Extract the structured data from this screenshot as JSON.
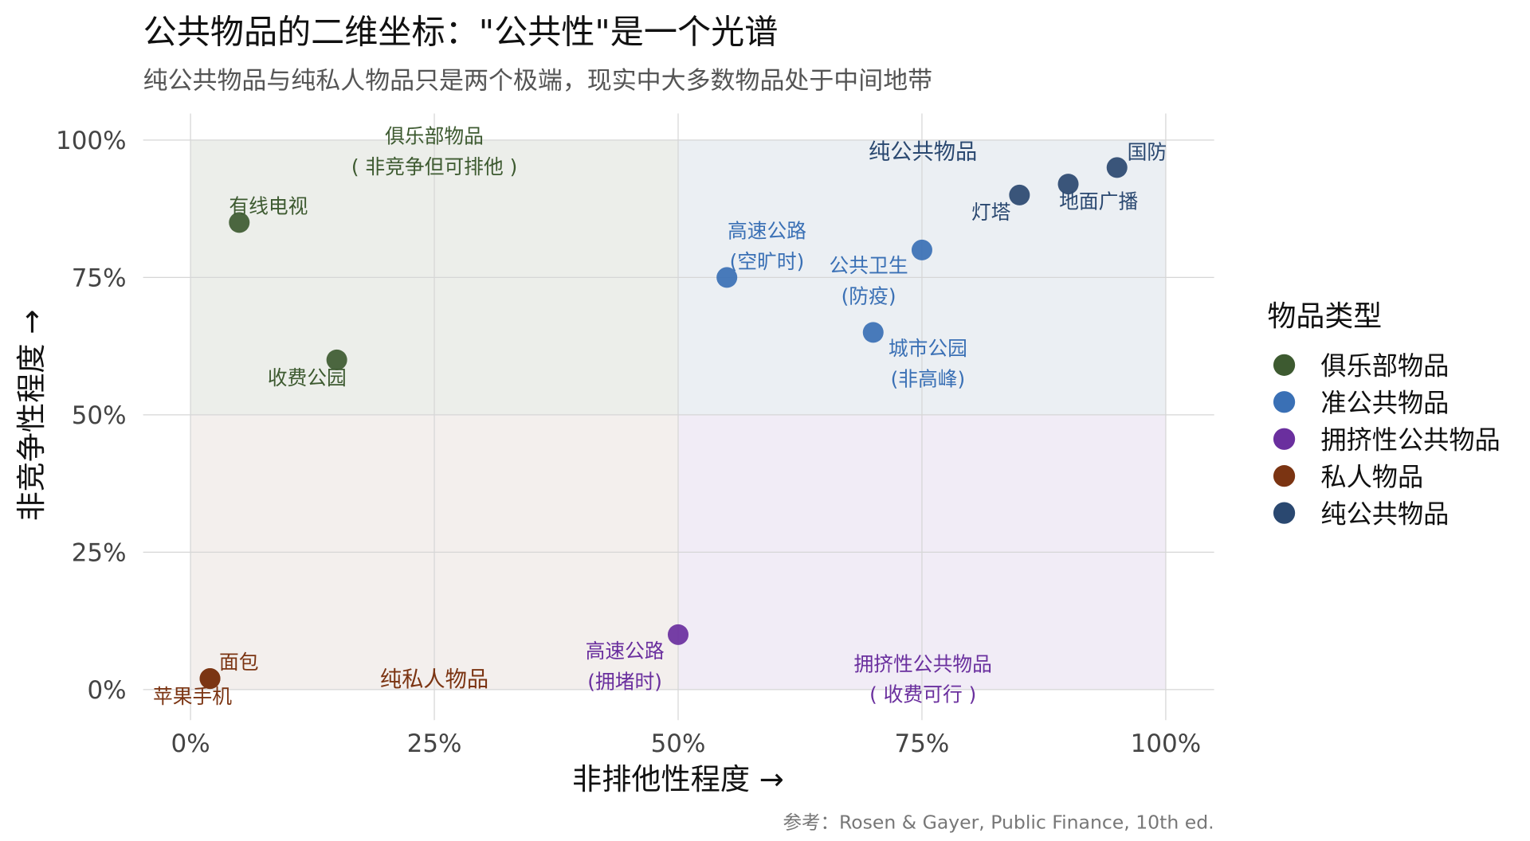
{
  "chart_data": {
    "type": "scatter",
    "title": "公共物品的二维坐标：\"公共性\"是一个光谱",
    "subtitle": "纯公共物品与纯私人物品只是两个极端，现实中大多数物品处于中间地带",
    "xlabel": "非排他性程度 →",
    "ylabel": "非竞争性程度 →",
    "caption": "参考：Rosen & Gayer, Public Finance, 10th ed.",
    "xlim": [
      0,
      100
    ],
    "ylim": [
      0,
      100
    ],
    "xticks": [
      "0%",
      "25%",
      "50%",
      "75%",
      "100%"
    ],
    "yticks": [
      "0%",
      "25%",
      "50%",
      "75%",
      "100%"
    ],
    "grid": true,
    "legend": {
      "title": "物品类型",
      "placement": "right",
      "items": [
        {
          "name": "俱乐部物品",
          "color": "#3d5a30"
        },
        {
          "name": "准公共物品",
          "color": "#3a70b5"
        },
        {
          "name": "拥挤性公共物品",
          "color": "#6a2f9e"
        },
        {
          "name": "私人物品",
          "color": "#7b3412"
        },
        {
          "name": "纯公共物品",
          "color": "#2a4870"
        }
      ]
    },
    "quadrants": [
      {
        "label_lines": [
          "俱乐部物品",
          "( 非竞争但可排他 )"
        ],
        "color": "#3d5a30",
        "fill": "#eceeea"
      },
      {
        "label_lines": [
          "纯公共物品"
        ],
        "color": "#2a4870",
        "fill": "#ebeff3"
      },
      {
        "label_lines": [
          "纯私人物品"
        ],
        "color": "#7b3412",
        "fill": "#f3efed"
      },
      {
        "label_lines": [
          "拥挤性公共物品",
          "( 收费可行 )"
        ],
        "color": "#6a2f9e",
        "fill": "#f1ecf6"
      }
    ],
    "points": [
      {
        "label_lines": [
          "有线电视"
        ],
        "x": 5,
        "y": 85,
        "group": 0
      },
      {
        "label_lines": [
          "收费公园"
        ],
        "x": 15,
        "y": 60,
        "group": 0
      },
      {
        "label_lines": [
          "高速公路",
          "(空旷时)"
        ],
        "x": 55,
        "y": 75,
        "group": 1
      },
      {
        "label_lines": [
          "公共卫生",
          "(防疫)"
        ],
        "x": 75,
        "y": 80,
        "group": 1
      },
      {
        "label_lines": [
          "城市公园",
          "(非高峰)"
        ],
        "x": 70,
        "y": 65,
        "group": 1
      },
      {
        "label_lines": [
          "高速公路",
          "(拥堵时)"
        ],
        "x": 50,
        "y": 10,
        "group": 2
      },
      {
        "label_lines": [
          "面包"
        ],
        "x": 2,
        "y": 2,
        "group": 3
      },
      {
        "label_lines": [
          "苹果手机"
        ],
        "x": 2,
        "y": 2,
        "group": 3
      },
      {
        "label_lines": [
          "灯塔"
        ],
        "x": 85,
        "y": 90,
        "group": 4
      },
      {
        "label_lines": [
          "地面广播"
        ],
        "x": 90,
        "y": 92,
        "group": 4
      },
      {
        "label_lines": [
          "国防"
        ],
        "x": 95,
        "y": 95,
        "group": 4
      }
    ]
  }
}
